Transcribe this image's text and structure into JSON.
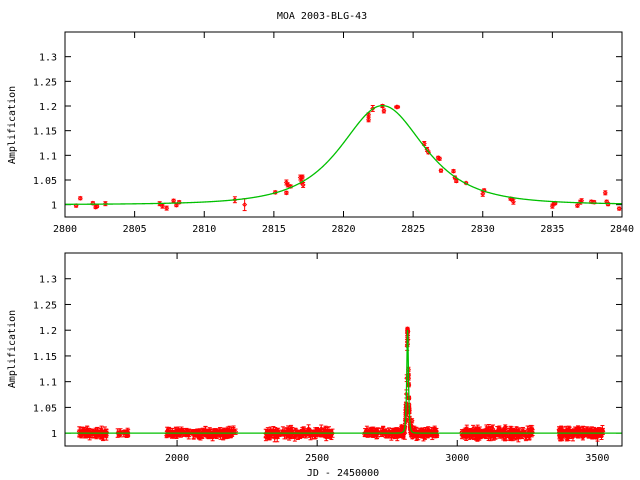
{
  "title": "MOA 2003-BLG-43",
  "colors": {
    "data": "#ff0000",
    "model": "#00c000",
    "axes": "#000000"
  },
  "chart_data": [
    {
      "type": "scatter",
      "name": "zoomed-event",
      "xlabel": "",
      "ylabel": "Amplification",
      "xlim": [
        2800,
        2840
      ],
      "ylim": [
        0.975,
        1.35
      ],
      "xticks": [
        2800,
        2805,
        2810,
        2815,
        2820,
        2825,
        2830,
        2835,
        2840
      ],
      "yticks": [
        1,
        1.05,
        1.1,
        1.15,
        1.2,
        1.25,
        1.3
      ],
      "ytick_labels": [
        "1",
        "1.05",
        "1.1",
        "1.15",
        "1.2",
        "1.25",
        "1.3"
      ],
      "grid": false,
      "points": [
        [
          2800.8,
          0.998,
          0.003
        ],
        [
          2801.1,
          1.013,
          0.003
        ],
        [
          2802.0,
          1.003,
          0.003
        ],
        [
          2802.2,
          0.995,
          0.003
        ],
        [
          2802.3,
          0.997,
          0.003
        ],
        [
          2802.9,
          1.002,
          0.004
        ],
        [
          2806.8,
          1.002,
          0.004
        ],
        [
          2807.0,
          0.997,
          0.004
        ],
        [
          2807.3,
          0.993,
          0.004
        ],
        [
          2807.8,
          1.008,
          0.003
        ],
        [
          2808.0,
          0.999,
          0.003
        ],
        [
          2808.2,
          1.005,
          0.003
        ],
        [
          2812.2,
          1.01,
          0.006
        ],
        [
          2812.9,
          1.0,
          0.012
        ],
        [
          2815.1,
          1.025,
          0.003
        ],
        [
          2815.9,
          1.045,
          0.005
        ],
        [
          2815.9,
          1.024,
          0.003
        ],
        [
          2816.0,
          1.04,
          0.004
        ],
        [
          2816.2,
          1.037,
          0.003
        ],
        [
          2816.9,
          1.055,
          0.005
        ],
        [
          2817.0,
          1.047,
          0.005
        ],
        [
          2817.1,
          1.04,
          0.005
        ],
        [
          2817.05,
          1.056,
          0.004
        ],
        [
          2821.8,
          1.182,
          0.004
        ],
        [
          2821.8,
          1.172,
          0.004
        ],
        [
          2822.1,
          1.195,
          0.006
        ],
        [
          2822.8,
          1.2,
          0.003
        ],
        [
          2822.9,
          1.19,
          0.004
        ],
        [
          2823.8,
          1.198,
          0.002
        ],
        [
          2823.9,
          1.198,
          0.002
        ],
        [
          2825.8,
          1.124,
          0.004
        ],
        [
          2826.0,
          1.112,
          0.004
        ],
        [
          2826.1,
          1.106,
          0.003
        ],
        [
          2826.8,
          1.095,
          0.003
        ],
        [
          2826.9,
          1.093,
          0.003
        ],
        [
          2827.0,
          1.069,
          0.003
        ],
        [
          2827.9,
          1.068,
          0.003
        ],
        [
          2828.0,
          1.055,
          0.003
        ],
        [
          2828.1,
          1.048,
          0.003
        ],
        [
          2828.8,
          1.044,
          0.002
        ],
        [
          2830.0,
          1.022,
          0.005
        ],
        [
          2830.1,
          1.029,
          0.003
        ],
        [
          2832.0,
          1.012,
          0.003
        ],
        [
          2832.1,
          1.011,
          0.003
        ],
        [
          2832.2,
          1.006,
          0.005
        ],
        [
          2835.0,
          0.997,
          0.004
        ],
        [
          2835.1,
          1.002,
          0.003
        ],
        [
          2835.2,
          1.003,
          0.003
        ],
        [
          2836.8,
          0.998,
          0.003
        ],
        [
          2837.0,
          1.005,
          0.004
        ],
        [
          2837.1,
          1.008,
          0.004
        ],
        [
          2837.8,
          1.006,
          0.003
        ],
        [
          2838.0,
          1.005,
          0.003
        ],
        [
          2838.8,
          1.024,
          0.004
        ],
        [
          2838.9,
          1.006,
          0.003
        ],
        [
          2839.0,
          1.001,
          0.003
        ],
        [
          2839.8,
          0.992,
          0.003
        ]
      ],
      "model": {
        "t0": 2822.8,
        "tE": 3.23,
        "u0": 1.27
      }
    },
    {
      "type": "scatter",
      "name": "full-lightcurve",
      "xlabel": "JD - 2450000",
      "ylabel": "Amplification",
      "xlim": [
        1600,
        3588
      ],
      "ylim": [
        0.975,
        1.35
      ],
      "xticks": [
        2000,
        2500,
        3000,
        3500
      ],
      "yticks": [
        1,
        1.05,
        1.1,
        1.15,
        1.2,
        1.25,
        1.3
      ],
      "ytick_labels": [
        "1",
        "1.05",
        "1.1",
        "1.15",
        "1.2",
        "1.25",
        "1.3"
      ],
      "grid": false,
      "seasons": [
        {
          "range": [
            1650,
            1750
          ],
          "n": 70,
          "scatter": 0.006
        },
        {
          "range": [
            1785,
            1827
          ],
          "n": 15,
          "scatter": 0.004
        },
        {
          "range": [
            1962,
            2209
          ],
          "n": 150,
          "scatter": 0.006
        },
        {
          "range": [
            2316,
            2556
          ],
          "n": 140,
          "scatter": 0.007
        },
        {
          "range": [
            2669,
            2931
          ],
          "n": 150,
          "scatter": 0.007
        },
        {
          "range": [
            3016,
            3271
          ],
          "n": 160,
          "scatter": 0.008
        },
        {
          "range": [
            3363,
            3520
          ],
          "n": 130,
          "scatter": 0.008
        }
      ],
      "event_points_from_panel": 0,
      "model": {
        "t0": 2822.8,
        "tE": 3.23,
        "u0": 1.27
      }
    }
  ]
}
